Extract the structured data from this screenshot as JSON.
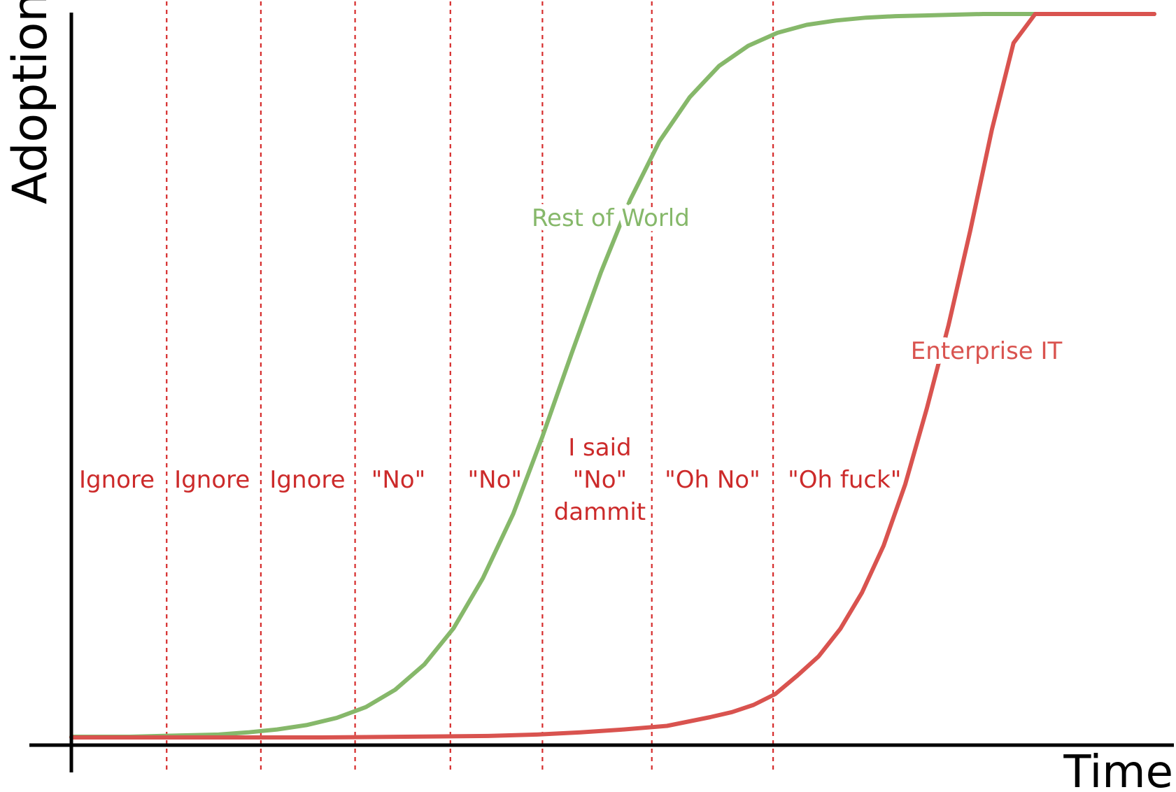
{
  "chart_data": {
    "type": "line",
    "xlabel": "Time",
    "ylabel": "Adoption",
    "xlim": [
      0,
      100
    ],
    "ylim": [
      0,
      100
    ],
    "grid": false,
    "colors": {
      "axis": "#000000",
      "divider": "#d62c2c",
      "phase_text": "#cc2a2a",
      "rest_of_world": "#86b86a",
      "enterprise_it": "#d9534f"
    },
    "series": [
      {
        "name": "Rest of World",
        "x": [
          0,
          2.7,
          5.4,
          8.2,
          10.9,
          13.6,
          16.3,
          19.0,
          21.7,
          24.5,
          27.2,
          29.9,
          32.6,
          35.3,
          38.0,
          40.8,
          43.5,
          46.2,
          48.9,
          51.6,
          54.3,
          57.1,
          59.8,
          62.5,
          65.2,
          67.9,
          70.6,
          73.4,
          76.1,
          78.8,
          81.5,
          84.2,
          86.9,
          89.7,
          92.4,
          95.1,
          97.8,
          100
        ],
        "y": [
          0.1,
          0.1,
          0.1,
          0.2,
          0.3,
          0.4,
          0.7,
          1.1,
          1.7,
          2.7,
          4.2,
          6.6,
          10.1,
          15.1,
          22.0,
          30.9,
          41.6,
          53.1,
          64.3,
          74.3,
          82.4,
          88.5,
          92.8,
          95.6,
          97.4,
          98.5,
          99.1,
          99.5,
          99.7,
          99.8,
          99.9,
          100,
          100,
          100,
          100,
          100,
          100,
          100
        ]
      },
      {
        "name": "Enterprise IT",
        "x": [
          0,
          7.7,
          15.4,
          23.1,
          30.8,
          38.5,
          43.0,
          47.0,
          51.0,
          55.0,
          59.0,
          61.0,
          63.0,
          65.0,
          67.0,
          69.0,
          71.0,
          73.0,
          75.0,
          77.0,
          79.0,
          81.0,
          83.0,
          85.0,
          87.0,
          89.0,
          91.0,
          93.0,
          95.0,
          100
        ],
        "y": [
          0,
          0,
          0,
          0,
          0.1,
          0.2,
          0.4,
          0.7,
          1.1,
          1.6,
          2.8,
          3.5,
          4.5,
          6.0,
          8.5,
          11.2,
          15.0,
          20.0,
          26.5,
          35.0,
          45.5,
          57.0,
          70.0,
          84.0,
          96.0,
          100,
          100,
          100,
          100,
          100
        ]
      }
    ],
    "series_labels": [
      {
        "text": "Rest of World",
        "x": 49.8,
        "y": 70.7
      },
      {
        "text": "Enterprise IT",
        "x": 84.5,
        "y": 52.3
      }
    ],
    "dividers": [
      8.8,
      17.5,
      26.2,
      35.0,
      43.5,
      53.6,
      64.8
    ],
    "phases": [
      {
        "lines": [
          "Ignore"
        ],
        "x": 4.2,
        "y": 35.7
      },
      {
        "lines": [
          "Ignore"
        ],
        "x": 13.0,
        "y": 35.7
      },
      {
        "lines": [
          "Ignore"
        ],
        "x": 21.8,
        "y": 35.7
      },
      {
        "lines": [
          "\"No\""
        ],
        "x": 30.2,
        "y": 35.7
      },
      {
        "lines": [
          "\"No\""
        ],
        "x": 39.1,
        "y": 35.7
      },
      {
        "lines": [
          "I said",
          "\"No\"",
          "dammit"
        ],
        "x": 48.8,
        "y": 35.7
      },
      {
        "lines": [
          "\"Oh No\""
        ],
        "x": 59.2,
        "y": 35.7
      },
      {
        "lines": [
          "\"Oh fuck\""
        ],
        "x": 71.4,
        "y": 35.7
      }
    ]
  }
}
